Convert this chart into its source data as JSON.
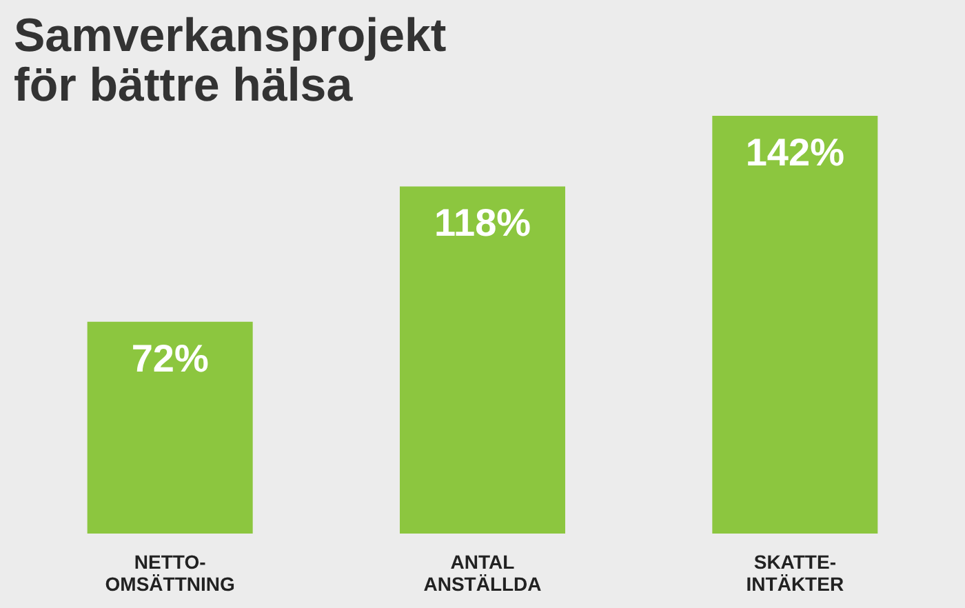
{
  "chart_data": {
    "type": "bar",
    "title": [
      "Samverkansprojekt",
      "för bättre hälsa"
    ],
    "categories": [
      "NETTO- OMSÄTTNING",
      "ANTAL ANSTÄLLDA",
      "SKATTE- INTÄKTER"
    ],
    "values": [
      72,
      118,
      142
    ],
    "color": "#8cc63f",
    "data_labels": true,
    "value_labels": [
      "72%",
      "118%",
      "142%"
    ],
    "grid": false
  }
}
